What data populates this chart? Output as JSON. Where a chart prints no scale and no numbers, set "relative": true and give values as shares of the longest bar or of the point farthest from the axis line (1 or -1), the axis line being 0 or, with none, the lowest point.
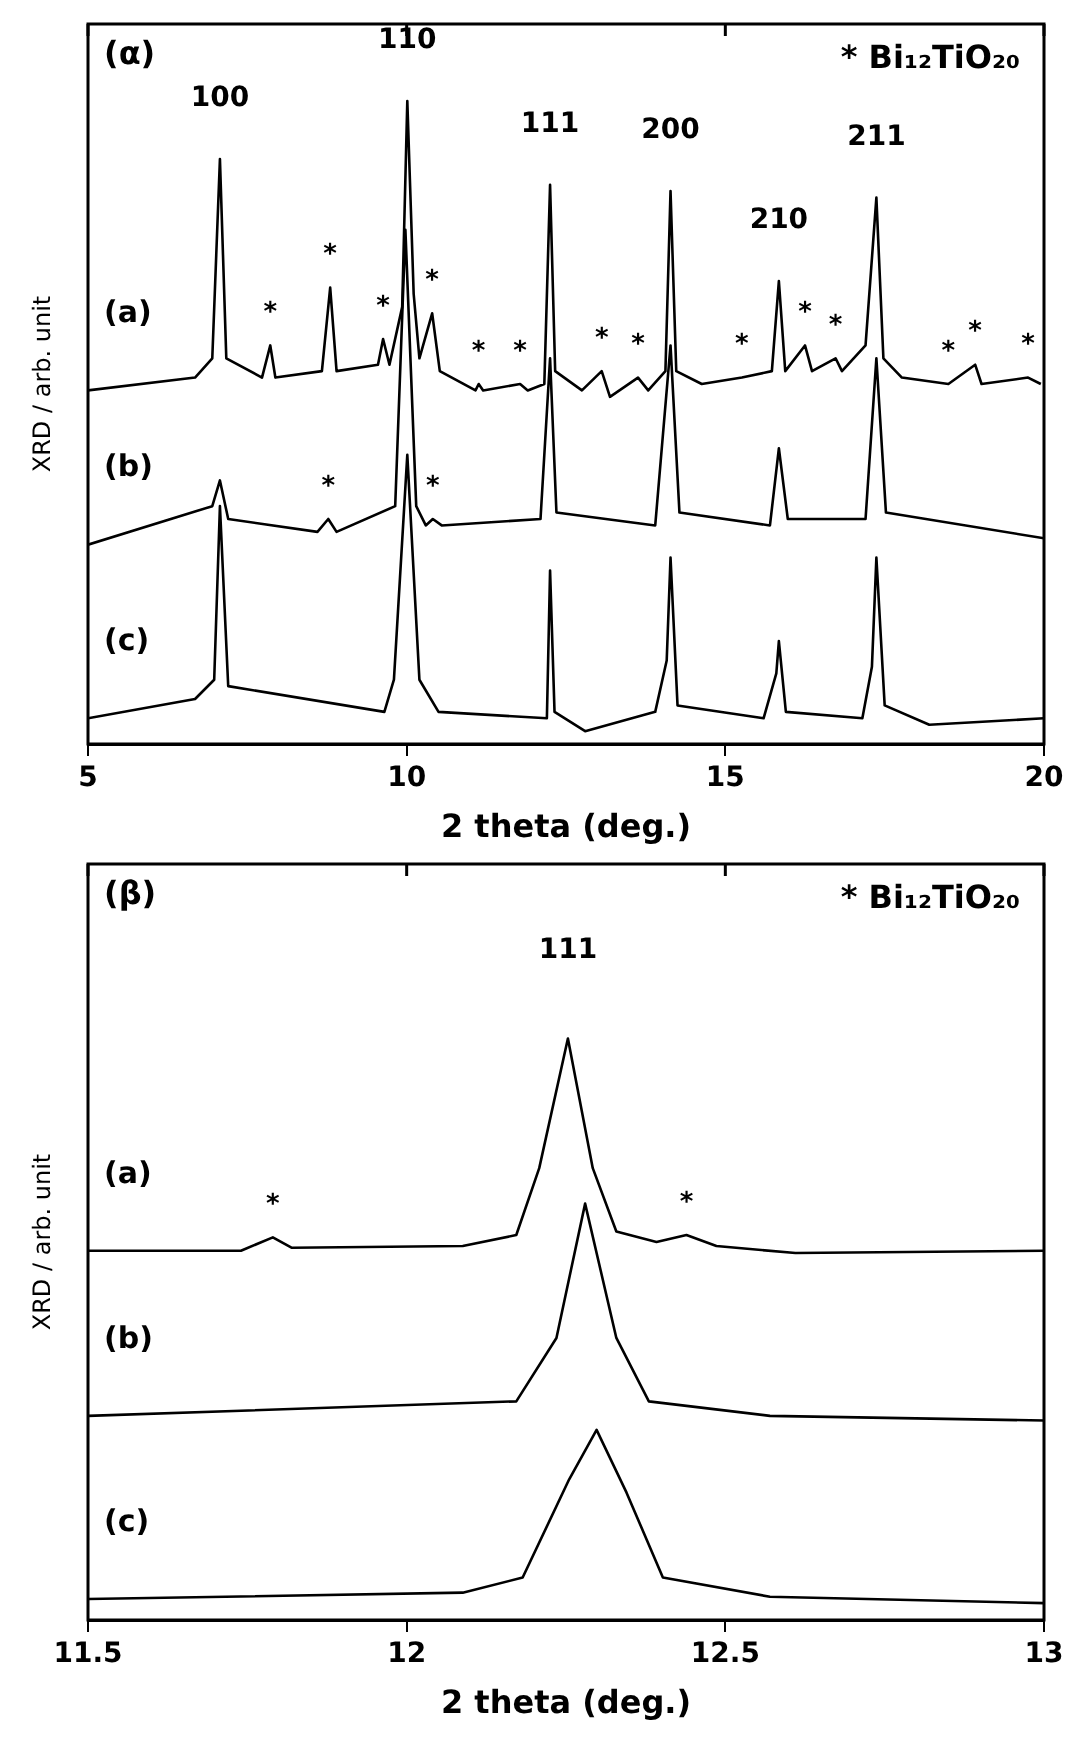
{
  "chart_data": [
    {
      "type": "line",
      "relative": true,
      "xlabel": "2 theta (deg.)",
      "ylabel": "XRD / arb. unit",
      "xlim": [
        5,
        20
      ],
      "xticks": [
        5,
        10,
        15,
        20
      ],
      "legend": false,
      "marker": "none",
      "line_style": "solid",
      "annotations": [
        "(α)",
        "* Bi₁₂TiO₂₀",
        {
          "text": "100",
          "x": 7.07,
          "y": 0.91
        },
        {
          "text": "110",
          "x": 10.01,
          "y": 1.0
        },
        {
          "text": "111",
          "x": 12.25,
          "y": 0.87
        },
        {
          "text": "200",
          "x": 14.14,
          "y": 0.86
        },
        {
          "text": "210",
          "x": 15.84,
          "y": 0.72
        },
        {
          "text": "211",
          "x": 17.37,
          "y": 0.85
        },
        {
          "text": "*",
          "x": 7.86,
          "y": 0.62
        },
        {
          "text": "*",
          "x": 8.8,
          "y": 0.71
        },
        {
          "text": "*",
          "x": 9.63,
          "y": 0.63
        },
        {
          "text": "*",
          "x": 10.4,
          "y": 0.67
        },
        {
          "text": "*",
          "x": 11.13,
          "y": 0.56
        },
        {
          "text": "*",
          "x": 11.78,
          "y": 0.56
        },
        {
          "text": "*",
          "x": 13.06,
          "y": 0.58
        },
        {
          "text": "*",
          "x": 13.63,
          "y": 0.57
        },
        {
          "text": "*",
          "x": 15.26,
          "y": 0.57
        },
        {
          "text": "*",
          "x": 16.25,
          "y": 0.62
        },
        {
          "text": "*",
          "x": 16.73,
          "y": 0.6
        },
        {
          "text": "*",
          "x": 18.5,
          "y": 0.56
        },
        {
          "text": "*",
          "x": 18.92,
          "y": 0.59
        },
        {
          "text": "*",
          "x": 19.75,
          "y": 0.57
        },
        {
          "text": "*",
          "x": 8.77,
          "y": 0.35
        },
        {
          "text": "*",
          "x": 10.41,
          "y": 0.35
        }
      ],
      "series": [
        {
          "name": "(a)",
          "color": "#000000",
          "x": [
            5.0,
            6.68,
            6.95,
            7.07,
            7.17,
            7.73,
            7.86,
            7.94,
            8.67,
            8.8,
            8.9,
            9.55,
            9.63,
            9.73,
            9.93,
            10.01,
            10.11,
            10.2,
            10.4,
            10.52,
            11.08,
            11.13,
            11.2,
            11.78,
            11.9,
            12.16,
            12.25,
            12.33,
            12.75,
            13.06,
            13.19,
            13.63,
            13.79,
            14.06,
            14.14,
            14.23,
            14.63,
            15.26,
            15.73,
            15.84,
            15.94,
            16.25,
            16.36,
            16.73,
            16.83,
            17.2,
            17.37,
            17.48,
            17.77,
            18.5,
            18.92,
            19.02,
            19.75,
            19.95
          ],
          "values": [
            0.55,
            0.57,
            0.6,
            0.91,
            0.6,
            0.57,
            0.62,
            0.57,
            0.58,
            0.71,
            0.58,
            0.59,
            0.63,
            0.59,
            0.68,
            1.0,
            0.7,
            0.6,
            0.67,
            0.58,
            0.55,
            0.56,
            0.55,
            0.56,
            0.55,
            0.56,
            0.87,
            0.58,
            0.55,
            0.58,
            0.54,
            0.57,
            0.55,
            0.58,
            0.86,
            0.58,
            0.56,
            0.57,
            0.58,
            0.72,
            0.58,
            0.62,
            0.58,
            0.6,
            0.58,
            0.62,
            0.85,
            0.6,
            0.57,
            0.56,
            0.59,
            0.56,
            0.57,
            0.56
          ]
        },
        {
          "name": "(b)",
          "color": "#000000",
          "x": [
            5.0,
            6.95,
            7.07,
            7.2,
            8.6,
            8.77,
            8.9,
            9.82,
            9.98,
            10.15,
            10.3,
            10.41,
            10.55,
            12.1,
            12.25,
            12.35,
            13.9,
            14.14,
            14.28,
            15.7,
            15.84,
            15.98,
            17.2,
            17.37,
            17.52,
            20.0
          ],
          "values": [
            0.31,
            0.37,
            0.41,
            0.35,
            0.33,
            0.35,
            0.33,
            0.37,
            0.8,
            0.37,
            0.34,
            0.35,
            0.34,
            0.35,
            0.6,
            0.36,
            0.34,
            0.62,
            0.36,
            0.34,
            0.46,
            0.35,
            0.35,
            0.6,
            0.36,
            0.32
          ]
        },
        {
          "name": "(c)",
          "color": "#000000",
          "x": [
            5.0,
            6.68,
            6.98,
            7.07,
            7.2,
            9.65,
            9.8,
            10.01,
            10.2,
            10.5,
            12.2,
            12.25,
            12.32,
            12.8,
            13.9,
            14.08,
            14.14,
            14.25,
            15.6,
            15.8,
            15.84,
            15.95,
            17.15,
            17.3,
            17.37,
            17.5,
            18.2,
            20.0
          ],
          "values": [
            0.04,
            0.07,
            0.1,
            0.37,
            0.09,
            0.05,
            0.1,
            0.45,
            0.1,
            0.05,
            0.04,
            0.27,
            0.05,
            0.02,
            0.05,
            0.13,
            0.29,
            0.06,
            0.04,
            0.11,
            0.16,
            0.05,
            0.04,
            0.12,
            0.29,
            0.06,
            0.03,
            0.04
          ]
        }
      ]
    },
    {
      "type": "line",
      "relative": true,
      "xlabel": "2 theta (deg.)",
      "ylabel": "XRD / arb. unit",
      "xlim": [
        11.5,
        13
      ],
      "xticks": [
        11.5,
        12,
        12.5,
        13
      ],
      "legend": false,
      "marker": "none",
      "line_style": "solid",
      "annotations": [
        "(β)",
        "* Bi₁₂TiO₂₀",
        {
          "text": "111",
          "x": 12.253,
          "y": 1.0
        },
        {
          "text": "*",
          "x": 11.79,
          "y": 0.658
        },
        {
          "text": "*",
          "x": 12.439,
          "y": 0.662
        }
      ],
      "series": [
        {
          "name": "(a)",
          "color": "#000000",
          "x": [
            11.5,
            11.74,
            11.79,
            11.82,
            12.088,
            12.172,
            12.208,
            12.253,
            12.292,
            12.329,
            12.392,
            12.439,
            12.486,
            12.61,
            13.0
          ],
          "values": [
            0.635,
            0.635,
            0.658,
            0.64,
            0.643,
            0.662,
            0.777,
            1.0,
            0.777,
            0.668,
            0.65,
            0.662,
            0.643,
            0.631,
            0.635
          ]
        },
        {
          "name": "(b)",
          "color": "#000000",
          "x": [
            11.5,
            12.172,
            12.235,
            12.28,
            12.329,
            12.38,
            12.57,
            13.0
          ],
          "values": [
            0.351,
            0.376,
            0.485,
            0.716,
            0.485,
            0.376,
            0.351,
            0.343
          ]
        },
        {
          "name": "(c)",
          "color": "#000000",
          "x": [
            11.5,
            12.088,
            12.182,
            12.255,
            12.298,
            12.345,
            12.402,
            12.57,
            13.0
          ],
          "values": [
            0.036,
            0.047,
            0.073,
            0.242,
            0.327,
            0.219,
            0.073,
            0.04,
            0.029
          ]
        }
      ]
    }
  ]
}
